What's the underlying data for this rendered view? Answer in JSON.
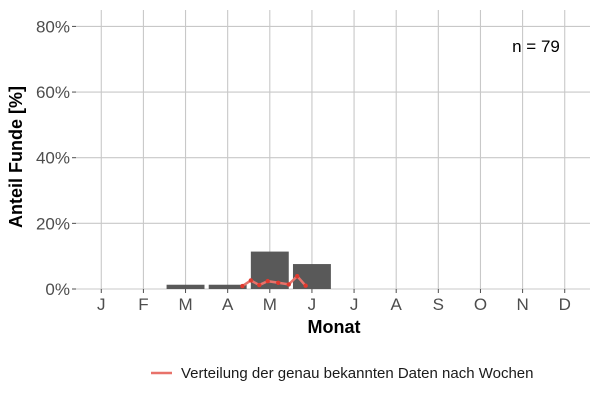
{
  "chart_data": {
    "type": "bar",
    "categories": [
      "J",
      "F",
      "M",
      "A",
      "M",
      "J",
      "J",
      "A",
      "S",
      "O",
      "N",
      "D"
    ],
    "values": [
      0,
      0,
      1.3,
      1.3,
      11.4,
      7.6,
      0,
      0,
      0,
      0,
      0,
      0
    ],
    "bar_color": "#595959",
    "ylim": [
      0,
      85
    ],
    "yticks": [
      0,
      20,
      40,
      60,
      80
    ],
    "ytick_labels": [
      "0%",
      "20%",
      "40%",
      "60%",
      "80%"
    ],
    "xlabel": "Monat",
    "ylabel": "Anteil Funde [%]",
    "annotation": "n = 79",
    "grid": true,
    "line_series": {
      "name": "Verteilung der genau bekannten Daten nach Wochen",
      "color": "#e8726a",
      "point_color": "#e03a2f",
      "x": [
        4.35,
        4.55,
        4.75,
        4.95,
        5.2,
        5.45,
        5.65,
        5.85
      ],
      "y": [
        0.9,
        2.6,
        1.2,
        2.4,
        1.9,
        1.4,
        3.9,
        1.0
      ]
    },
    "legend_position": "bottom-right"
  }
}
